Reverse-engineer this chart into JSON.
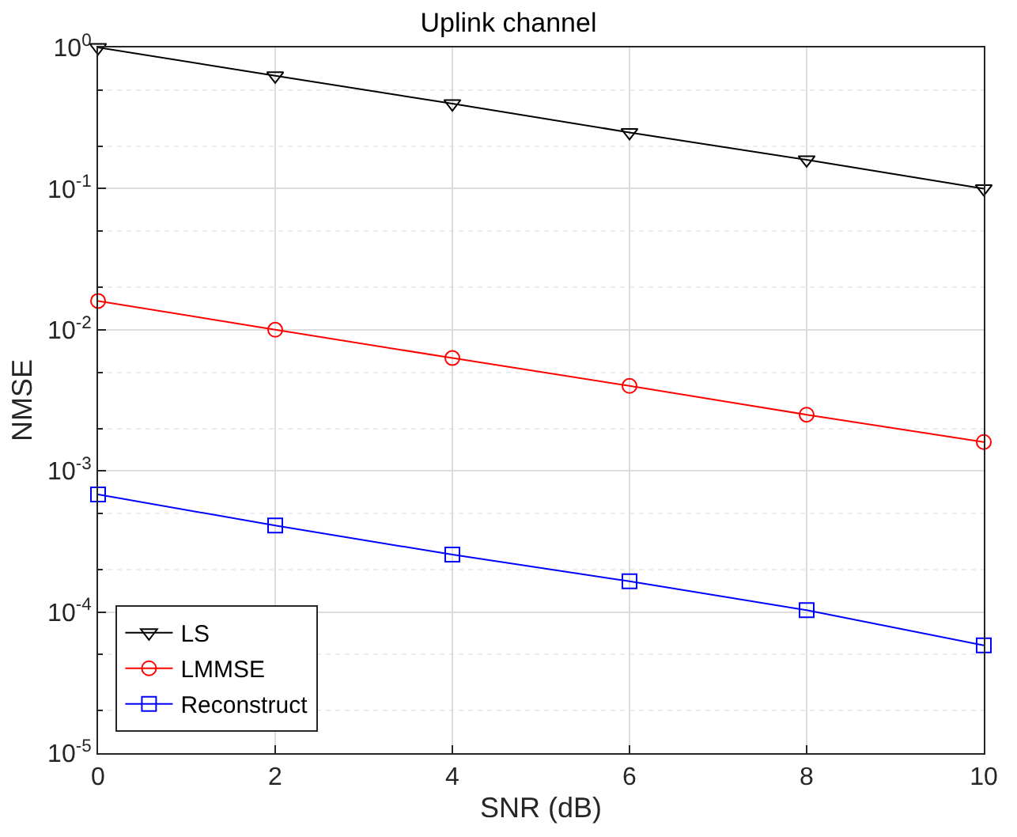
{
  "chart_data": {
    "type": "line",
    "title": "Uplink channel",
    "xlabel": "SNR (dB)",
    "ylabel": "NMSE",
    "x": [
      0,
      2,
      4,
      6,
      8,
      10
    ],
    "series": [
      {
        "name": "LS",
        "color": "#000000",
        "marker": "triangle",
        "values": [
          1.0,
          0.63,
          0.4,
          0.25,
          0.16,
          0.1
        ]
      },
      {
        "name": "LMMSE",
        "color": "#ff0000",
        "marker": "circle",
        "values": [
          0.016,
          0.01,
          0.0063,
          0.004,
          0.0025,
          0.0016
        ]
      },
      {
        "name": "Reconstruct",
        "color": "#0000ff",
        "marker": "square",
        "values": [
          0.00068,
          0.00041,
          0.000255,
          0.000165,
          0.000103,
          5.8e-05
        ]
      }
    ],
    "log": "y",
    "xlim": [
      0,
      10
    ],
    "xticks": [
      0,
      2,
      4,
      6,
      8,
      10
    ],
    "ylim": [
      1e-05,
      1
    ],
    "yticks": [
      {
        "value": 1e-05,
        "label": "10$^{-5}$"
      },
      {
        "value": 0.0001,
        "label": "10$^{-4}$"
      },
      {
        "value": 0.001,
        "label": "10$^{-3}$"
      },
      {
        "value": 0.01,
        "label": "10$^{-2}$"
      },
      {
        "value": 0.1,
        "label": "10$^{-1}$"
      },
      {
        "value": 1,
        "label": "10$^{0}$"
      }
    ],
    "grid": true,
    "legend": "bottom left",
    "line_style": "solid"
  }
}
